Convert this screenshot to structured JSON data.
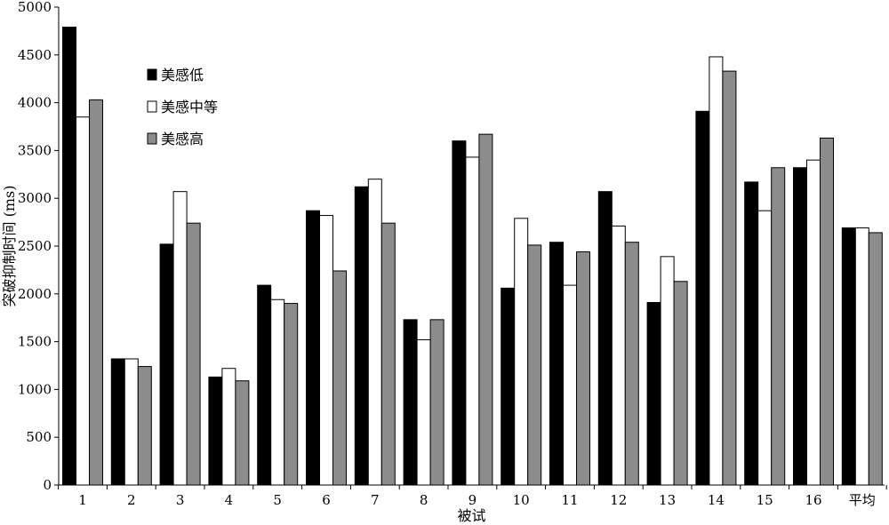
{
  "chart_data": {
    "type": "bar",
    "xlabel": "被试",
    "ylabel": "突破抑制时间 (ms)",
    "ylim": [
      0,
      5000
    ],
    "yticks": [
      0,
      500,
      1000,
      1500,
      2000,
      2500,
      3000,
      3500,
      4000,
      4500,
      5000
    ],
    "grid": false,
    "legend_position": "top-left",
    "categories": [
      "1",
      "2",
      "3",
      "4",
      "5",
      "6",
      "7",
      "8",
      "9",
      "10",
      "11",
      "12",
      "13",
      "14",
      "15",
      "16",
      "平均"
    ],
    "series": [
      {
        "name": "美感低",
        "color": "#000000",
        "values": [
          4790,
          1320,
          2520,
          1130,
          2090,
          2870,
          3120,
          1730,
          3600,
          2060,
          2540,
          3070,
          1910,
          3910,
          3170,
          3320,
          2690
        ]
      },
      {
        "name": "美感中等",
        "color": "#ffffff",
        "values": [
          3850,
          1320,
          3070,
          1220,
          1940,
          2820,
          3200,
          1520,
          3430,
          2790,
          2090,
          2710,
          2390,
          4480,
          2870,
          3400,
          2690
        ]
      },
      {
        "name": "美感高",
        "color": "#8c8c8c",
        "values": [
          4030,
          1240,
          2740,
          1090,
          1900,
          2240,
          2740,
          1730,
          3670,
          2510,
          2440,
          2540,
          2130,
          4330,
          3320,
          3630,
          2640
        ]
      }
    ]
  }
}
